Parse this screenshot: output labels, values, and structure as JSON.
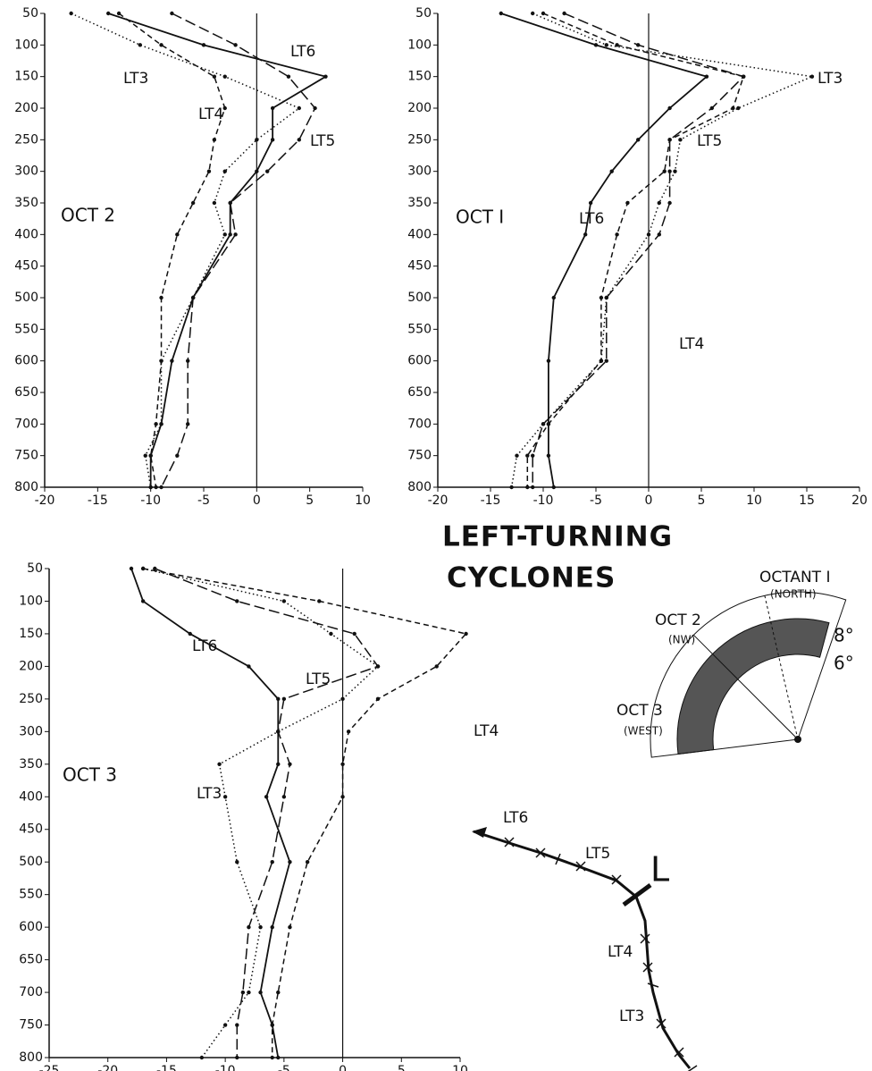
{
  "chart_data": [
    {
      "type": "line",
      "title": "OCT 2",
      "levels": [
        50,
        100,
        150,
        200,
        250,
        300,
        350,
        400,
        500,
        600,
        700,
        750,
        800
      ],
      "xlim": [
        -20,
        10
      ],
      "xticks": [
        -20,
        -15,
        -10,
        -5,
        0,
        5,
        10
      ],
      "ylim": [
        800,
        50
      ],
      "yticks": [
        50,
        100,
        150,
        200,
        250,
        300,
        350,
        400,
        450,
        500,
        550,
        600,
        650,
        700,
        750,
        800
      ],
      "series": [
        {
          "name": "LT3",
          "style": "dotted",
          "color": "#111",
          "values": [
            -17.5,
            -11,
            -3,
            4,
            0,
            -3,
            -4,
            -3,
            -6,
            -9,
            -9,
            -10.5,
            -10
          ]
        },
        {
          "name": "LT4",
          "style": "dashed",
          "color": "#111",
          "values": [
            -13,
            -9,
            -4,
            -3,
            -4,
            -4.5,
            -6,
            -7.5,
            -9,
            -9,
            -9.5,
            -10,
            -9.5
          ]
        },
        {
          "name": "LT5",
          "style": "longdash",
          "color": "#111",
          "values": [
            -8,
            -2,
            3,
            5.5,
            4,
            1,
            -2.5,
            -2,
            -6,
            -6.5,
            -6.5,
            -7.5,
            -9
          ]
        },
        {
          "name": "LT6",
          "style": "solid",
          "color": "#111",
          "values": [
            -14,
            -5,
            6.5,
            1.5,
            1.5,
            0,
            -2.5,
            -2.5,
            -6,
            -8,
            -9,
            -10,
            -10
          ]
        }
      ]
    },
    {
      "type": "line",
      "title": "OCT I",
      "levels": [
        50,
        100,
        150,
        200,
        250,
        300,
        350,
        400,
        500,
        600,
        700,
        750,
        800
      ],
      "xlim": [
        -20,
        20
      ],
      "xticks": [
        -20,
        -15,
        -10,
        -5,
        0,
        5,
        10,
        15,
        20
      ],
      "ylim": [
        800,
        50
      ],
      "yticks": [
        50,
        100,
        150,
        200,
        250,
        300,
        350,
        400,
        450,
        500,
        550,
        600,
        650,
        700,
        750,
        800
      ],
      "series": [
        {
          "name": "LT3",
          "style": "dotted",
          "color": "#111",
          "values": [
            -11,
            -4,
            15.5,
            8.5,
            3,
            2.5,
            1,
            0,
            -4,
            -4.5,
            -10,
            -12.5,
            -13
          ]
        },
        {
          "name": "LT4",
          "style": "dashed",
          "color": "#111",
          "values": [
            -10,
            -3,
            9,
            8,
            2,
            1.5,
            -2,
            -3,
            -4.5,
            -4.5,
            -9.5,
            -11.5,
            -11.5
          ]
        },
        {
          "name": "LT5",
          "style": "longdash",
          "color": "#111",
          "values": [
            -8,
            -1,
            9,
            6,
            2,
            2,
            2,
            1,
            -4,
            -4,
            -10,
            -11,
            -11
          ]
        },
        {
          "name": "LT6",
          "style": "solid",
          "color": "#111",
          "values": [
            -14,
            -5,
            5.5,
            2,
            -1,
            -3.5,
            -5.5,
            -6,
            -9,
            -9.5,
            -9.5,
            -9.5,
            -9
          ]
        }
      ]
    },
    {
      "type": "line",
      "title": "OCT 3",
      "levels": [
        50,
        100,
        150,
        200,
        250,
        300,
        350,
        400,
        500,
        600,
        700,
        750,
        800
      ],
      "xlim": [
        -25,
        10
      ],
      "xticks": [
        -25,
        -20,
        -15,
        -10,
        -5,
        0,
        5,
        10
      ],
      "ylim": [
        800,
        50
      ],
      "yticks": [
        50,
        100,
        150,
        200,
        250,
        300,
        350,
        400,
        450,
        500,
        550,
        600,
        650,
        700,
        750,
        800
      ],
      "series": [
        {
          "name": "LT3",
          "style": "dotted",
          "color": "#111",
          "values": [
            -17,
            -5,
            -1,
            3,
            0,
            -5.5,
            -10.5,
            -10,
            -9,
            -7,
            -8,
            -10,
            -12
          ]
        },
        {
          "name": "LT4",
          "style": "dashed",
          "color": "#111",
          "values": [
            -17,
            -2,
            10.5,
            8,
            3,
            0.5,
            0,
            0,
            -3,
            -4.5,
            -5.5,
            -6,
            -6
          ]
        },
        {
          "name": "LT5",
          "style": "longdash",
          "color": "#111",
          "values": [
            -16,
            -9,
            1,
            3,
            -5,
            -5.5,
            -4.5,
            -5,
            -6,
            -8,
            -8.5,
            -9,
            -9
          ]
        },
        {
          "name": "LT6",
          "style": "solid",
          "color": "#111",
          "values": [
            -18,
            -17,
            -13,
            -8,
            -5.5,
            -5.5,
            -5.5,
            -6.5,
            -4.5,
            -6,
            -7,
            -6,
            -5.5
          ]
        }
      ]
    }
  ],
  "heading": [
    "LEFT-TURNING",
    "CYCLONES"
  ],
  "octant_diagram": {
    "north": "OCTANT I",
    "north_note": "(NORTH)",
    "nw": "OCT 2",
    "nw_note": "(NW)",
    "outer": "8°",
    "inner": "6°",
    "west": "OCT 3",
    "west_note": "(WEST)"
  },
  "track_diagram": {
    "labels": [
      "LT6",
      "LT5",
      "LT4",
      "LT3"
    ],
    "center": "L"
  }
}
